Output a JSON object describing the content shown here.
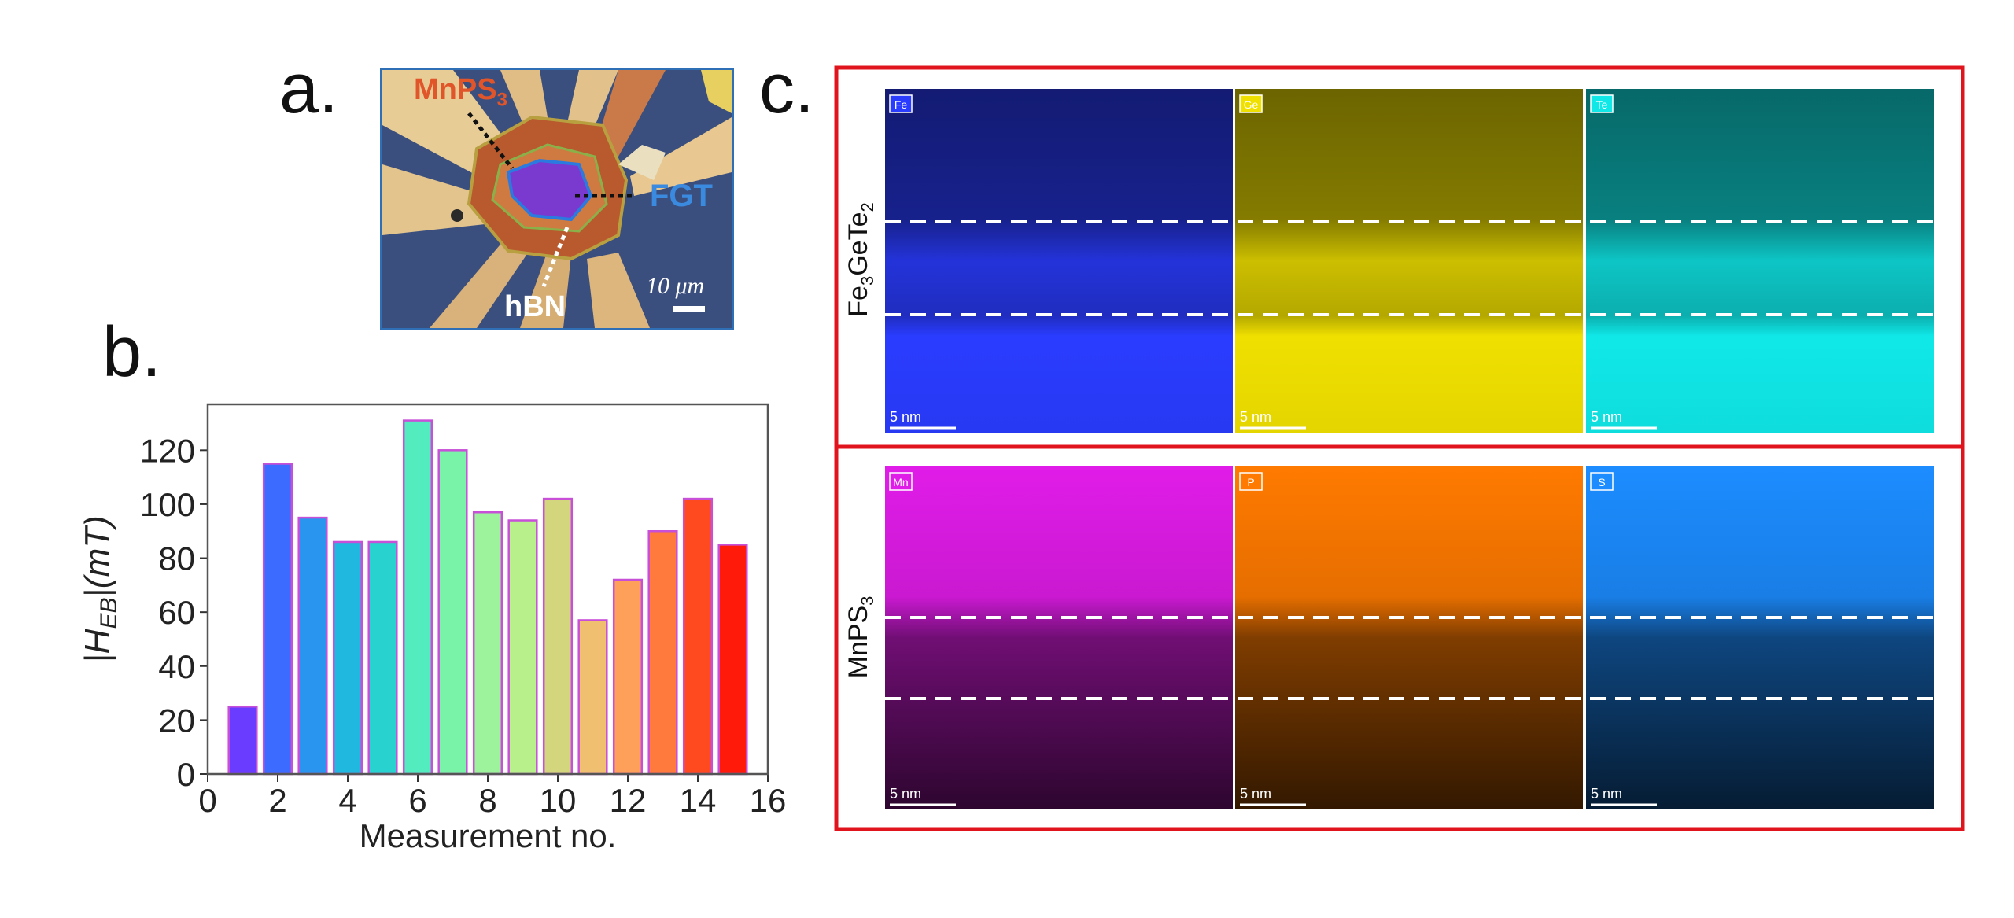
{
  "panels": {
    "a": "a.",
    "b": "b.",
    "c": "c."
  },
  "micrograph": {
    "label_mnps3": "MnPS",
    "label_mnps3_sub": "3",
    "label_fgt": "FGT",
    "label_hbn": "hBN",
    "scale_bar": "10 μm"
  },
  "chart_data": {
    "type": "bar",
    "xlabel": "Measurement no.",
    "ylabel_main": "|H",
    "ylabel_sub": "EB",
    "ylabel_rest": "|(mT)",
    "x": [
      1,
      2,
      3,
      4,
      5,
      6,
      7,
      8,
      9,
      10,
      11,
      12,
      13,
      14,
      15
    ],
    "values": [
      25,
      115,
      95,
      86,
      86,
      131,
      120,
      97,
      94,
      102,
      57,
      72,
      90,
      102,
      85
    ],
    "colors": [
      "#6a3cff",
      "#3c6cff",
      "#2a95ee",
      "#21b8e0",
      "#28d3cf",
      "#52ecbf",
      "#79f3a8",
      "#9cf39b",
      "#b8f08c",
      "#d4d67d",
      "#f0c070",
      "#ffa05a",
      "#ff7a3c",
      "#ff4a20",
      "#ff1a0a"
    ],
    "xlim": [
      0,
      16
    ],
    "ylim": [
      0,
      137
    ],
    "xticks": [
      "0",
      "2",
      "4",
      "6",
      "8",
      "10",
      "12",
      "14",
      "16"
    ],
    "yticks": [
      "0",
      "20",
      "40",
      "60",
      "80",
      "100",
      "120"
    ],
    "bar_edge": "#c84fd8"
  },
  "eds": {
    "top_row_label": "Fe",
    "top_row_sub1": "3",
    "top_row_mid": "GeTe",
    "top_row_sub2": "2",
    "bottom_row_label": "MnPS",
    "bottom_row_sub": "3",
    "scale": "5 nm",
    "top_maps": [
      {
        "element": "Fe",
        "color": "#2a3cff"
      },
      {
        "element": "Ge",
        "color": "#f0e000"
      },
      {
        "element": "Te",
        "color": "#10e8e8"
      }
    ],
    "bottom_maps": [
      {
        "element": "Mn",
        "color": "#e01ce8"
      },
      {
        "element": "P",
        "color": "#ff7a00"
      },
      {
        "element": "S",
        "color": "#1c8cff"
      }
    ],
    "frame_color": "#e0141c"
  }
}
